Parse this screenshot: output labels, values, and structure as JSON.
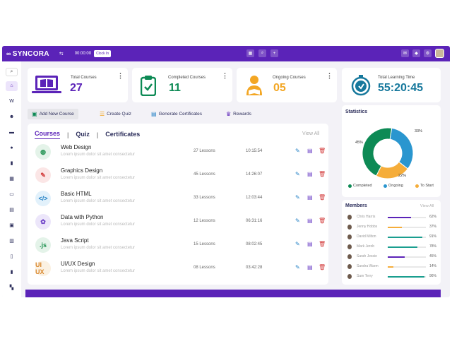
{
  "topbar": {
    "brand": "SYNCORA",
    "timer": "00:00:00",
    "clock_in_label": "Clock In"
  },
  "sidebar": {
    "icons": [
      "home-icon",
      "w-icon",
      "people-icon",
      "folder-icon",
      "chat-icon",
      "clipboard-icon",
      "calendar-icon",
      "card-icon",
      "table-icon",
      "image-icon",
      "chart-icon",
      "doc-icon",
      "file-icon",
      "book-icon"
    ]
  },
  "stats": [
    {
      "label": "Total Courses",
      "value": "27",
      "color": "#5b23b8",
      "icon": "laptop-book-icon"
    },
    {
      "label": "Completed Courses",
      "value": "11",
      "color": "#0d8a55",
      "icon": "clipboard-check-icon"
    },
    {
      "label": "Ongoing Courses",
      "value": "05",
      "color": "#f3a623",
      "icon": "reader-icon"
    },
    {
      "label": "Total Learning Time",
      "value": "55:20:45",
      "color": "#16789c",
      "icon": "stopwatch-icon"
    }
  ],
  "actions": {
    "add_course": "Add New Course",
    "create_quiz": "Create Quiz",
    "generate_certificates": "Generate Certificates",
    "rewards": "Rewards"
  },
  "courses_panel": {
    "tabs": [
      "Courses",
      "Quiz",
      "Certificates"
    ],
    "view_all": "View All",
    "rows": [
      {
        "title": "Web Design",
        "desc": "Lorem ipsum dolor sit amet consectetur",
        "lessons": "27 Lessons",
        "time": "10:15:54",
        "icon_text": "◍",
        "icon_bg": "#e4f3e9",
        "icon_color": "#1a8f4c"
      },
      {
        "title": "Graphics Design",
        "desc": "Lorem ipsum dolor sit amet consectetur",
        "lessons": "45 Lessons",
        "time": "14:26:07",
        "icon_text": "✎",
        "icon_bg": "#fbe6e6",
        "icon_color": "#d33d3d"
      },
      {
        "title": "Basic HTML",
        "desc": "Lorem ipsum dolor sit amet consectetur",
        "lessons": "33 Lessons",
        "time": "12:03:44",
        "icon_text": "</>",
        "icon_bg": "#e2f1fb",
        "icon_color": "#1f7fc4"
      },
      {
        "title": "Data with Python",
        "desc": "Lorem ipsum dolor sit amet consectetur",
        "lessons": "12 Lessons",
        "time": "06:31:16",
        "icon_text": "✿",
        "icon_bg": "#ece6fa",
        "icon_color": "#6a3dc5"
      },
      {
        "title": "Java Script",
        "desc": "Lorem ipsum dolor sit amet consectetur",
        "lessons": "15 Lessons",
        "time": "08:02:45",
        "icon_text": ".js",
        "icon_bg": "#e4f3e9",
        "icon_color": "#1a8f4c"
      },
      {
        "title": "UI/UX Design",
        "desc": "Lorem ipsum dolor sit amet consectetur",
        "lessons": "08 Lessons",
        "time": "03:42:28",
        "icon_text": "UI UX",
        "icon_bg": "#fbf1e2",
        "icon_color": "#d9862a"
      }
    ]
  },
  "statistics": {
    "title": "Statistics",
    "segments": [
      {
        "label": "Completed",
        "pct": 45,
        "pct_label": "45%",
        "color": "#0d8a55"
      },
      {
        "label": "Ongoing",
        "pct": 33,
        "pct_label": "33%",
        "color": "#2a96cf"
      },
      {
        "label": "To Start",
        "pct": 22,
        "pct_label": "22%",
        "color": "#f5ad3a"
      }
    ]
  },
  "members": {
    "title": "Members",
    "view_all": "View All",
    "list": [
      {
        "name": "Chris Harris",
        "pct": 62,
        "pct_label": "62%",
        "color": "#5b23b8"
      },
      {
        "name": "Jenny Hobbs",
        "pct": 37,
        "pct_label": "37%",
        "color": "#f5ad3a"
      },
      {
        "name": "David Milton",
        "pct": 91,
        "pct_label": "91%",
        "color": "#1a9e8f"
      },
      {
        "name": "Mark Jerob",
        "pct": 78,
        "pct_label": "78%",
        "color": "#1a9e8f"
      },
      {
        "name": "Sarah Jessie",
        "pct": 45,
        "pct_label": "45%",
        "color": "#5b23b8"
      },
      {
        "name": "Sandra Warm",
        "pct": 14,
        "pct_label": "14%",
        "color": "#f5ad3a"
      },
      {
        "name": "Sam Terry",
        "pct": 96,
        "pct_label": "96%",
        "color": "#1a9e8f"
      }
    ]
  }
}
